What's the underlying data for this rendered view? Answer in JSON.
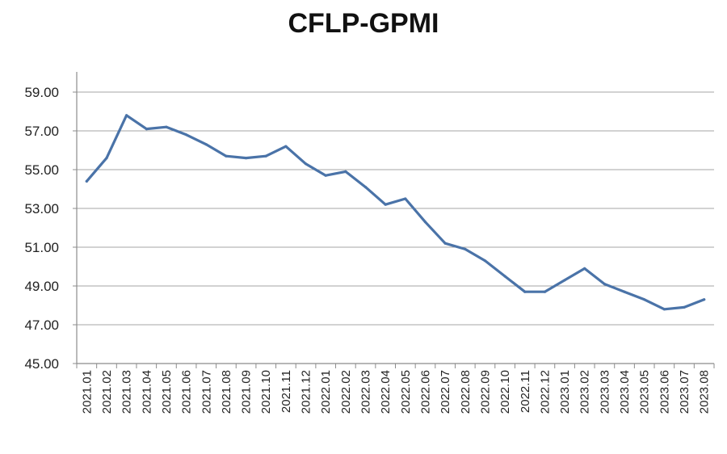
{
  "chart_data": {
    "type": "line",
    "title": "CFLP-GPMI",
    "xlabel": "",
    "ylabel": "",
    "ylim": [
      45,
      59
    ],
    "yticks": [
      "45.00",
      "47.00",
      "49.00",
      "51.00",
      "53.00",
      "55.00",
      "57.00",
      "59.00"
    ],
    "grid": true,
    "line_color": "#4a73a8",
    "categories": [
      "2021.01",
      "2021.02",
      "2021.03",
      "2021.04",
      "2021.05",
      "2021.06",
      "2021.07",
      "2021.08",
      "2021.09",
      "2021.10",
      "2021.11",
      "2021.12",
      "2022.01",
      "2022.02",
      "2022.03",
      "2022.04",
      "2022.05",
      "2022.06",
      "2022.07",
      "2022.08",
      "2022.09",
      "2022.10",
      "2022.11",
      "2022.12",
      "2023.01",
      "2023.02",
      "2023.03",
      "2023.04",
      "2023.05",
      "2023.06",
      "2023.07",
      "2023.08"
    ],
    "series": [
      {
        "values": [
          54.4,
          55.6,
          57.8,
          57.1,
          57.2,
          56.8,
          56.3,
          55.7,
          55.6,
          55.7,
          56.2,
          55.3,
          54.7,
          54.9,
          54.1,
          53.2,
          53.5,
          52.3,
          51.2,
          50.9,
          50.3,
          49.5,
          48.7,
          48.7,
          49.3,
          49.9,
          49.1,
          48.7,
          48.3,
          47.8,
          47.9,
          48.3
        ]
      }
    ]
  }
}
